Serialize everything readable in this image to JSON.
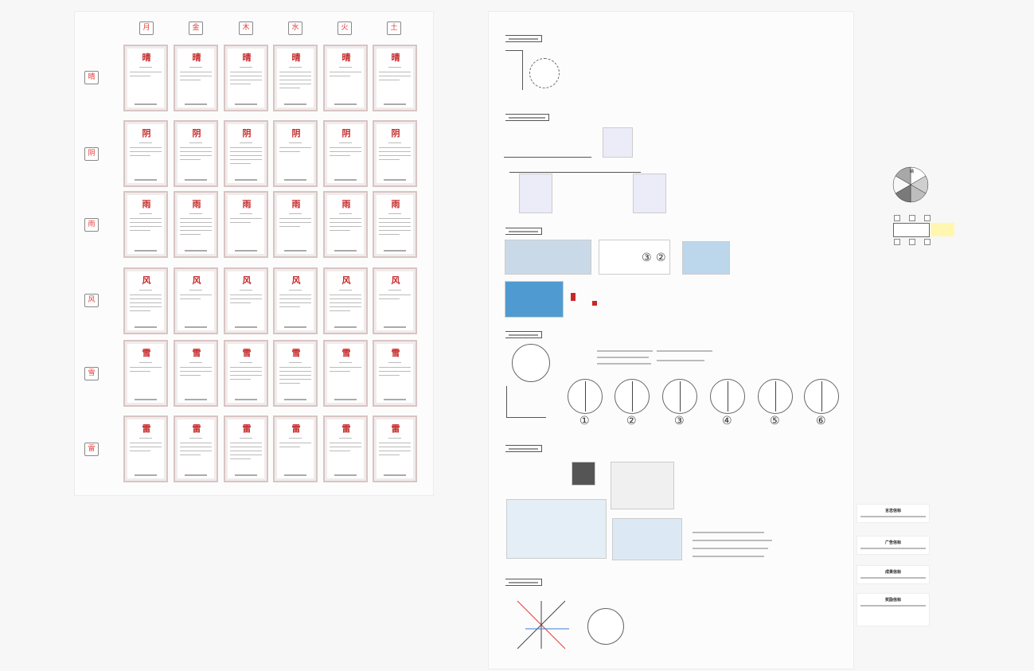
{
  "board": {
    "columns": [
      "月",
      "金",
      "木",
      "水",
      "火",
      "土"
    ],
    "rows": [
      "晴",
      "阴",
      "雨",
      "风",
      "雪",
      "雷"
    ]
  },
  "right_panel": {
    "circle_numbers": [
      "①",
      "②",
      "③",
      "④",
      "⑤",
      "⑥"
    ],
    "section3_numbers": [
      "③",
      "②"
    ]
  },
  "side_notes": [
    "言志信标",
    "广告信标",
    "成果信标",
    "奖励信标"
  ],
  "pie_label": "晴",
  "colors": {
    "accent": "#e53935",
    "sticky": "#fff7b0"
  }
}
